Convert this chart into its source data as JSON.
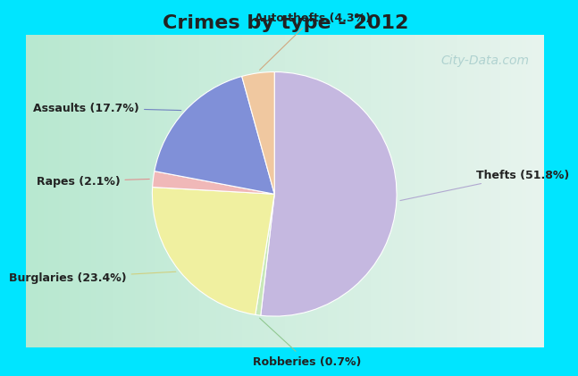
{
  "title": "Crimes by type - 2012",
  "slices": [
    {
      "label": "Thefts (51.8%)",
      "value": 51.8,
      "color": "#c5b8e0"
    },
    {
      "label": "Robberies (0.7%)",
      "value": 0.7,
      "color": "#c8e8b8"
    },
    {
      "label": "Burglaries (23.4%)",
      "value": 23.4,
      "color": "#f0f0a0"
    },
    {
      "label": "Rapes (2.1%)",
      "value": 2.1,
      "color": "#f0b8b8"
    },
    {
      "label": "Assaults (17.7%)",
      "value": 17.7,
      "color": "#8090d8"
    },
    {
      "label": "Auto thefts (4.3%)",
      "value": 4.3,
      "color": "#f0c8a0"
    }
  ],
  "cyan_color": "#00e5ff",
  "bg_left_color": "#b8e8d0",
  "bg_right_color": "#e8f4ee",
  "title_color": "#222222",
  "title_fontsize": 16,
  "label_fontsize": 9,
  "watermark": "City-Data.com",
  "label_offsets": [
    [
      1.42,
      0.1,
      "left"
    ],
    [
      0.1,
      -1.35,
      "center"
    ],
    [
      -1.3,
      -0.7,
      "right"
    ],
    [
      -1.35,
      0.05,
      "right"
    ],
    [
      -1.2,
      0.62,
      "right"
    ],
    [
      0.15,
      1.32,
      "center"
    ]
  ],
  "line_colors": [
    "#b0a8d0",
    "#90c890",
    "#d0d080",
    "#e09090",
    "#7080c0",
    "#d0a880"
  ]
}
